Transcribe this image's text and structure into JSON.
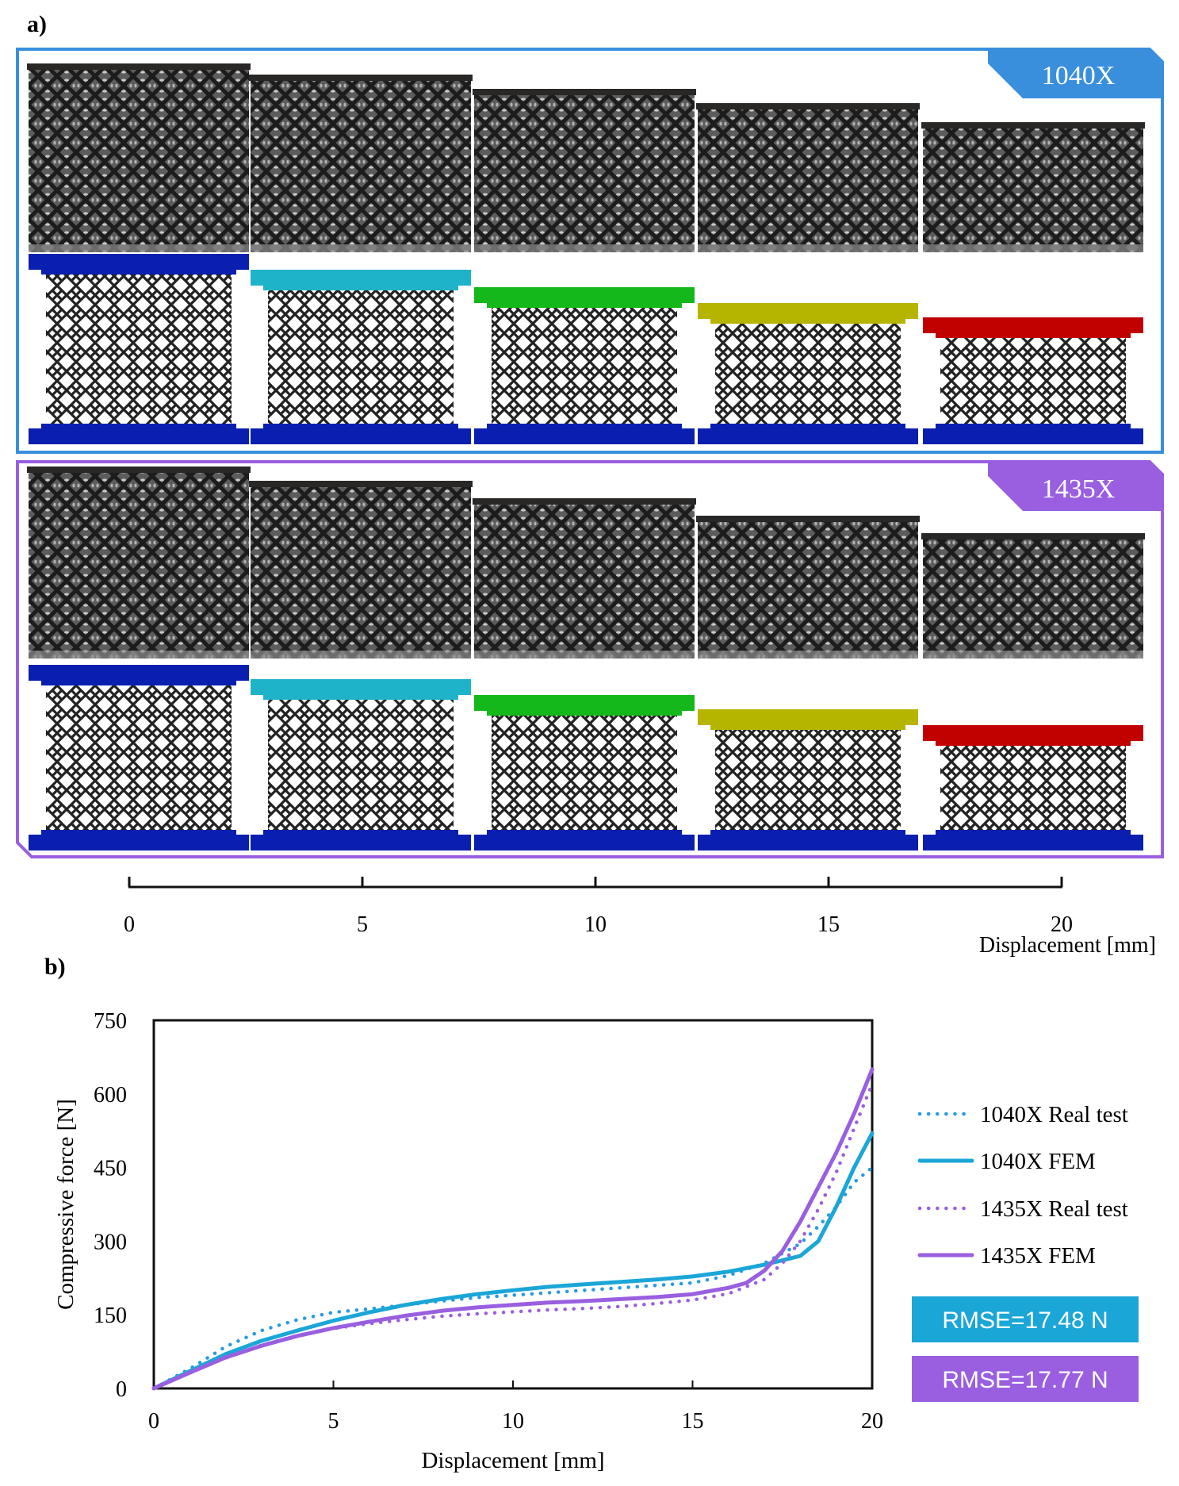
{
  "panel_a": {
    "label": "a)",
    "groups": [
      {
        "name": "1040X",
        "color": "#3a8fdd"
      },
      {
        "name": "1435X",
        "color": "#9a5fe0"
      }
    ],
    "frame_colors": [
      "#0a1fb0",
      "#1fb3c9",
      "#15b81a",
      "#b5b500",
      "#c10000"
    ],
    "axis": {
      "ticks": [
        "0",
        "5",
        "10",
        "15",
        "20"
      ],
      "label": "Displacement [mm]"
    }
  },
  "panel_b": {
    "label": "b)",
    "rmse": [
      {
        "text": "RMSE=17.48 N",
        "color": "#1ba6d8"
      },
      {
        "text": "RMSE=17.77 N",
        "color": "#9a5fe0"
      }
    ]
  },
  "chart_data": {
    "type": "line",
    "title": "",
    "xlabel": "Displacement [mm]",
    "ylabel": "Compressive force [N]",
    "xlim": [
      0,
      20
    ],
    "ylim": [
      0,
      750
    ],
    "xticks": [
      0,
      5,
      10,
      15,
      20
    ],
    "yticks": [
      0,
      150,
      300,
      450,
      600,
      750
    ],
    "grid": false,
    "legend_position": "right",
    "series": [
      {
        "name": "1040X Real test",
        "style": "dotted",
        "color": "#2a9ae0",
        "x": [
          0,
          1,
          2,
          3,
          4,
          5,
          6,
          7,
          8,
          9,
          10,
          11,
          12,
          13,
          14,
          15,
          16,
          17,
          18,
          18.5,
          19,
          19.5,
          20
        ],
        "y": [
          0,
          40,
          85,
          118,
          140,
          155,
          162,
          170,
          178,
          185,
          190,
          195,
          200,
          205,
          210,
          215,
          230,
          255,
          295,
          330,
          370,
          420,
          450
        ]
      },
      {
        "name": "1040X FEM",
        "style": "solid",
        "color": "#1ba6d8",
        "x": [
          0,
          1,
          2,
          3,
          4,
          5,
          6,
          7,
          8,
          9,
          10,
          11,
          12,
          13,
          14,
          15,
          16,
          17,
          18,
          18.5,
          19,
          19.5,
          20
        ],
        "y": [
          0,
          35,
          70,
          97,
          118,
          138,
          155,
          170,
          182,
          192,
          200,
          207,
          212,
          217,
          222,
          228,
          238,
          252,
          270,
          300,
          370,
          450,
          520
        ]
      },
      {
        "name": "1435X Real test",
        "style": "dotted",
        "color": "#9a5fe0",
        "x": [
          0,
          1,
          2,
          3,
          4,
          5,
          6,
          7,
          8,
          9,
          10,
          11,
          12,
          13,
          14,
          15,
          16,
          17,
          17.5,
          18,
          18.5,
          19,
          19.5,
          20
        ],
        "y": [
          0,
          32,
          62,
          88,
          108,
          122,
          132,
          140,
          147,
          152,
          156,
          160,
          163,
          167,
          173,
          180,
          193,
          222,
          255,
          300,
          365,
          440,
          530,
          620
        ]
      },
      {
        "name": "1435X FEM",
        "style": "solid",
        "color": "#9a5fe0",
        "x": [
          0,
          1,
          2,
          3,
          4,
          5,
          6,
          7,
          8,
          9,
          10,
          11,
          12,
          13,
          14,
          15,
          16,
          16.5,
          17,
          17.5,
          18,
          18.5,
          19,
          19.5,
          20
        ],
        "y": [
          0,
          32,
          63,
          87,
          107,
          123,
          136,
          148,
          158,
          165,
          170,
          175,
          178,
          182,
          186,
          192,
          205,
          215,
          240,
          280,
          340,
          410,
          480,
          560,
          650
        ]
      }
    ]
  }
}
